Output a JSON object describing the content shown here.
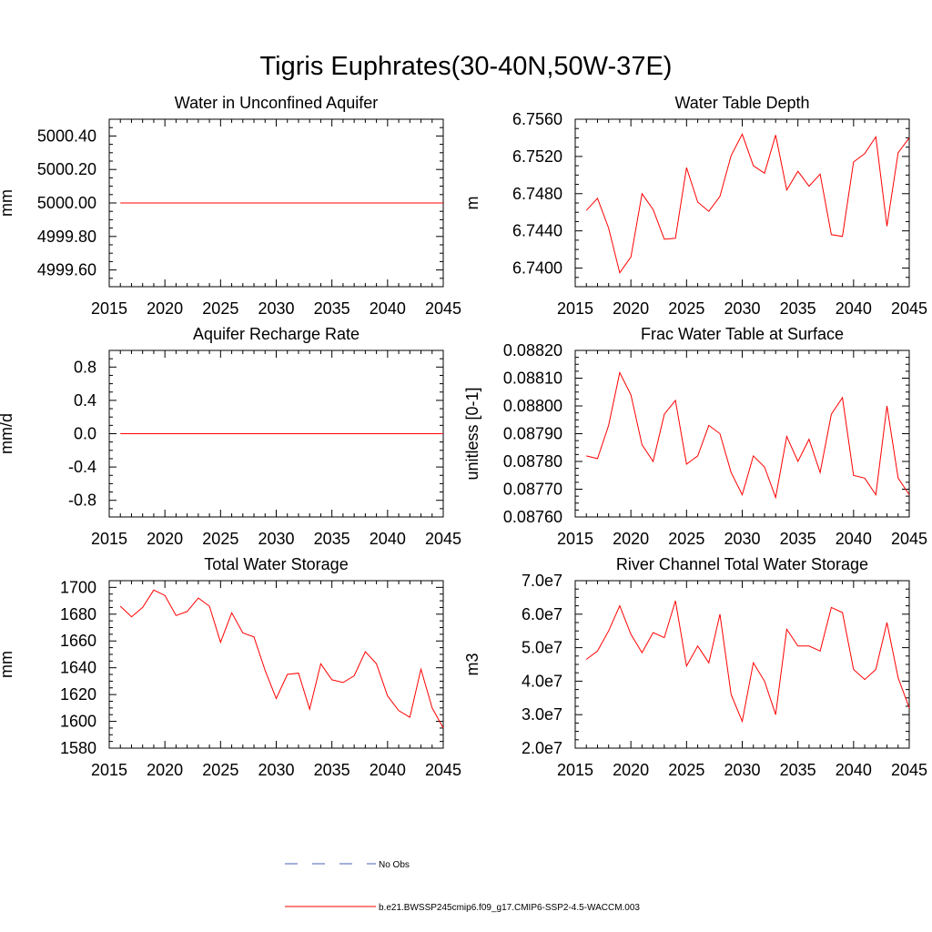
{
  "title": "Tigris Euphrates(30-40N,50W-37E)",
  "legend": {
    "obs_label": "No Obs",
    "obs_color": "#4a5fb0",
    "model_label": "b.e21.BWSSP245cmip6.f09_g17.CMIP6-SSP2-4.5-WACCM.003",
    "model_color": "#ff0000"
  },
  "chart_data": [
    {
      "type": "line",
      "title": "Water in Unconfined Aquifer",
      "ylabel": "mm",
      "xlabel": "",
      "xlim": [
        2015,
        2045
      ],
      "ylim": [
        4999.5,
        5000.5
      ],
      "xticks": [
        2015,
        2020,
        2025,
        2030,
        2035,
        2040,
        2045
      ],
      "yticks": [
        4999.6,
        4999.8,
        5000.0,
        5000.2,
        5000.4
      ],
      "ytick_labels": [
        "4999.60",
        "4999.80",
        "5000.00",
        "5000.20",
        "5000.40"
      ],
      "x": [
        2016,
        2017,
        2018,
        2019,
        2020,
        2021,
        2022,
        2023,
        2024,
        2025,
        2026,
        2027,
        2028,
        2029,
        2030,
        2031,
        2032,
        2033,
        2034,
        2035,
        2036,
        2037,
        2038,
        2039,
        2040,
        2041,
        2042,
        2043,
        2044,
        2045
      ],
      "series": [
        {
          "name": "model",
          "values": [
            5000,
            5000,
            5000,
            5000,
            5000,
            5000,
            5000,
            5000,
            5000,
            5000,
            5000,
            5000,
            5000,
            5000,
            5000,
            5000,
            5000,
            5000,
            5000,
            5000,
            5000,
            5000,
            5000,
            5000,
            5000,
            5000,
            5000,
            5000,
            5000,
            5000
          ]
        }
      ]
    },
    {
      "type": "line",
      "title": "Water Table Depth",
      "ylabel": "m",
      "xlabel": "",
      "xlim": [
        2015,
        2045
      ],
      "ylim": [
        6.738,
        6.756
      ],
      "xticks": [
        2015,
        2020,
        2025,
        2030,
        2035,
        2040,
        2045
      ],
      "yticks": [
        6.74,
        6.744,
        6.748,
        6.752,
        6.756
      ],
      "ytick_labels": [
        "6.7400",
        "6.7440",
        "6.7480",
        "6.7520",
        "6.7560"
      ],
      "x": [
        2016,
        2017,
        2018,
        2019,
        2020,
        2021,
        2022,
        2023,
        2024,
        2025,
        2026,
        2027,
        2028,
        2029,
        2030,
        2031,
        2032,
        2033,
        2034,
        2035,
        2036,
        2037,
        2038,
        2039,
        2040,
        2041,
        2042,
        2043,
        2044,
        2045
      ],
      "series": [
        {
          "name": "model",
          "values": [
            6.7462,
            6.7475,
            6.7443,
            6.7395,
            6.7412,
            6.748,
            6.7463,
            6.7431,
            6.7432,
            6.7508,
            6.7471,
            6.7461,
            6.7477,
            6.7521,
            6.7544,
            6.751,
            6.7502,
            6.7543,
            6.7484,
            6.7504,
            6.7488,
            6.7501,
            6.7436,
            6.7434,
            6.7514,
            6.7523,
            6.7541,
            6.7445,
            6.7524,
            6.754
          ]
        }
      ]
    },
    {
      "type": "line",
      "title": "Aquifer Recharge Rate",
      "ylabel": "mm/d",
      "xlabel": "",
      "xlim": [
        2015,
        2045
      ],
      "ylim": [
        -1.0,
        1.0
      ],
      "xticks": [
        2015,
        2020,
        2025,
        2030,
        2035,
        2040,
        2045
      ],
      "yticks": [
        -0.8,
        -0.4,
        0.0,
        0.4,
        0.8
      ],
      "ytick_labels": [
        "-0.8",
        "-0.4",
        "0.0",
        "0.4",
        "0.8"
      ],
      "x": [
        2016,
        2017,
        2018,
        2019,
        2020,
        2021,
        2022,
        2023,
        2024,
        2025,
        2026,
        2027,
        2028,
        2029,
        2030,
        2031,
        2032,
        2033,
        2034,
        2035,
        2036,
        2037,
        2038,
        2039,
        2040,
        2041,
        2042,
        2043,
        2044,
        2045
      ],
      "series": [
        {
          "name": "model",
          "values": [
            0,
            0,
            0,
            0,
            0,
            0,
            0,
            0,
            0,
            0,
            0,
            0,
            0,
            0,
            0,
            0,
            0,
            0,
            0,
            0,
            0,
            0,
            0,
            0,
            0,
            0,
            0,
            0,
            0,
            0
          ]
        }
      ]
    },
    {
      "type": "line",
      "title": "Frac Water Table at Surface",
      "ylabel": "unitless [0-1]",
      "xlabel": "",
      "xlim": [
        2015,
        2045
      ],
      "ylim": [
        0.0876,
        0.0882
      ],
      "xticks": [
        2015,
        2020,
        2025,
        2030,
        2035,
        2040,
        2045
      ],
      "yticks": [
        0.0876,
        0.0877,
        0.0878,
        0.0879,
        0.088,
        0.0881,
        0.0882
      ],
      "ytick_labels": [
        "0.08760",
        "0.08770",
        "0.08780",
        "0.08790",
        "0.08800",
        "0.08810",
        "0.08820"
      ],
      "x": [
        2016,
        2017,
        2018,
        2019,
        2020,
        2021,
        2022,
        2023,
        2024,
        2025,
        2026,
        2027,
        2028,
        2029,
        2030,
        2031,
        2032,
        2033,
        2034,
        2035,
        2036,
        2037,
        2038,
        2039,
        2040,
        2041,
        2042,
        2043,
        2044,
        2045
      ],
      "series": [
        {
          "name": "model",
          "values": [
            0.08782,
            0.08781,
            0.08793,
            0.08812,
            0.08804,
            0.08786,
            0.0878,
            0.08797,
            0.08802,
            0.08779,
            0.08782,
            0.08793,
            0.0879,
            0.08776,
            0.08768,
            0.08782,
            0.08778,
            0.08767,
            0.08789,
            0.0878,
            0.08788,
            0.08776,
            0.08797,
            0.08803,
            0.08775,
            0.08774,
            0.08768,
            0.088,
            0.08774,
            0.08768
          ]
        }
      ]
    },
    {
      "type": "line",
      "title": "Total Water Storage",
      "ylabel": "mm",
      "xlabel": "",
      "xlim": [
        2015,
        2045
      ],
      "ylim": [
        1580,
        1705
      ],
      "xticks": [
        2015,
        2020,
        2025,
        2030,
        2035,
        2040,
        2045
      ],
      "yticks": [
        1580,
        1600,
        1620,
        1640,
        1660,
        1680,
        1700
      ],
      "ytick_labels": [
        "1580",
        "1600",
        "1620",
        "1640",
        "1660",
        "1680",
        "1700"
      ],
      "x": [
        2016,
        2017,
        2018,
        2019,
        2020,
        2021,
        2022,
        2023,
        2024,
        2025,
        2026,
        2027,
        2028,
        2029,
        2030,
        2031,
        2032,
        2033,
        2034,
        2035,
        2036,
        2037,
        2038,
        2039,
        2040,
        2041,
        2042,
        2043,
        2044,
        2045
      ],
      "series": [
        {
          "name": "model",
          "values": [
            1686,
            1678,
            1685,
            1698,
            1694,
            1679,
            1682,
            1692,
            1686,
            1659,
            1681,
            1666,
            1663,
            1638,
            1617,
            1635,
            1636,
            1609,
            1643,
            1631,
            1629,
            1634,
            1652,
            1643,
            1619,
            1608,
            1603,
            1639,
            1610,
            1595
          ]
        }
      ]
    },
    {
      "type": "line",
      "title": "River Channel Total Water Storage",
      "ylabel": "m3",
      "xlabel": "",
      "xlim": [
        2015,
        2045
      ],
      "ylim": [
        20000000,
        70000000
      ],
      "xticks": [
        2015,
        2020,
        2025,
        2030,
        2035,
        2040,
        2045
      ],
      "yticks": [
        20000000,
        30000000,
        40000000,
        50000000,
        60000000,
        70000000
      ],
      "ytick_labels": [
        "2.0e7",
        "3.0e7",
        "4.0e7",
        "5.0e7",
        "6.0e7",
        "7.0e7"
      ],
      "x": [
        2016,
        2017,
        2018,
        2019,
        2020,
        2021,
        2022,
        2023,
        2024,
        2025,
        2026,
        2027,
        2028,
        2029,
        2030,
        2031,
        2032,
        2033,
        2034,
        2035,
        2036,
        2037,
        2038,
        2039,
        2040,
        2041,
        2042,
        2043,
        2044,
        2045
      ],
      "series": [
        {
          "name": "model",
          "values": [
            46500000,
            49000000,
            55000000,
            62500000,
            54000000,
            48500000,
            54500000,
            53000000,
            64000000,
            44500000,
            50500000,
            45500000,
            60000000,
            36000000,
            28000000,
            45500000,
            40000000,
            30000000,
            55500000,
            50500000,
            50500000,
            49000000,
            62000000,
            60500000,
            43500000,
            40500000,
            43500000,
            57500000,
            41000000,
            32000000
          ]
        }
      ]
    }
  ]
}
